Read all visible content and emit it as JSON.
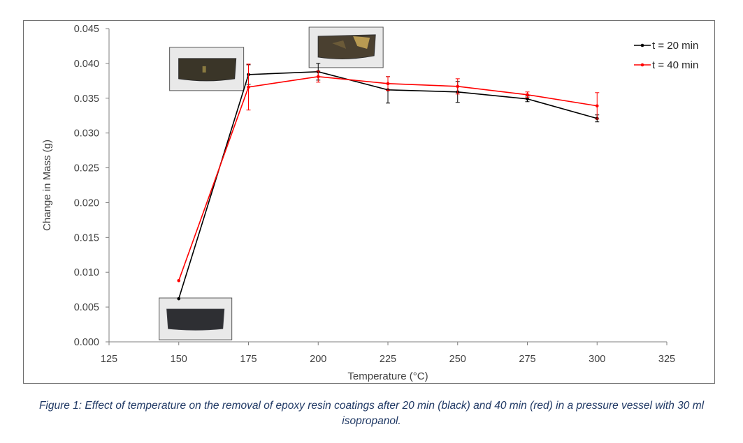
{
  "chart_data": {
    "type": "line",
    "xlabel": "Temperature (°C)",
    "ylabel": "Change in Mass (g)",
    "xlim": [
      125,
      325
    ],
    "ylim": [
      0,
      0.045
    ],
    "x_ticks": [
      "125",
      "150",
      "175",
      "200",
      "225",
      "250",
      "275",
      "300",
      "325"
    ],
    "y_ticks": [
      "0.000",
      "0.005",
      "0.010",
      "0.015",
      "0.020",
      "0.025",
      "0.030",
      "0.035",
      "0.040",
      "0.045"
    ],
    "x_tick_values": [
      125,
      150,
      175,
      200,
      225,
      250,
      275,
      300,
      325
    ],
    "y_tick_values": [
      0,
      0.005,
      0.01,
      0.015,
      0.02,
      0.025,
      0.03,
      0.035,
      0.04,
      0.045
    ],
    "grid": false,
    "legend_position": "top-right",
    "series": [
      {
        "name": "t = 20 min",
        "color": "#000000",
        "x": [
          150,
          175,
          200,
          225,
          250,
          275,
          300
        ],
        "values": [
          0.0062,
          0.0384,
          0.0388,
          0.0362,
          0.0359,
          0.0349,
          0.0321
        ],
        "error": [
          0.0,
          0.0014,
          0.0012,
          0.0019,
          0.0015,
          0.0004,
          0.0005
        ]
      },
      {
        "name": "t = 40 min",
        "color": "#ff0000",
        "x": [
          150,
          175,
          200,
          225,
          250,
          275,
          300
        ],
        "values": [
          0.0088,
          0.0366,
          0.0381,
          0.0371,
          0.0367,
          0.0355,
          0.0339
        ],
        "error": [
          0.0,
          0.0033,
          0.0008,
          0.001,
          0.0011,
          0.0004,
          0.0019
        ]
      }
    ],
    "insets": [
      {
        "name": "sample-photo-175",
        "x": 160,
        "y": 0.0392,
        "base_color": "#3a3528",
        "edge_color": "#2b2b2b"
      },
      {
        "name": "sample-photo-200",
        "x": 210,
        "y": 0.0423,
        "base_color": "#4a4030",
        "edge_color": "#303030"
      },
      {
        "name": "sample-photo-150",
        "x": 156,
        "y": 0.0033,
        "base_color": "#2e2f33",
        "edge_color": "#3a3b40"
      }
    ]
  },
  "caption": "Figure 1: Effect of temperature on the removal of epoxy resin coatings after 20 min (black) and 40 min (red) in a pressure vessel with 30 ml isopropanol."
}
